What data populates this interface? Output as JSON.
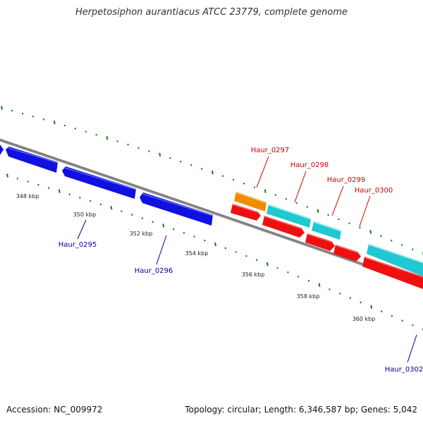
{
  "title": "Herpetosiphon aurantiacus ATCC 23779, complete genome",
  "footer": {
    "accession": "Accession: NC_009972",
    "summary": "Topology: circular; Length: 6,346,587 bp; Genes: 5,042"
  },
  "colors": {
    "backbone": "#808080",
    "ticks": "#1a7a1a",
    "forward_gene_label": "#cc0000",
    "reverse_gene_label": "#000099",
    "gene_blue": "#1010e0",
    "gene_red": "#ee1010",
    "gene_cyan": "#20c8d0",
    "gene_orange": "#f08c00"
  },
  "position_labels": [
    "348 kbp",
    "350 kbp",
    "352 kbp",
    "354 kbp",
    "356 kbp",
    "358 kbp",
    "360 kbp"
  ],
  "gene_labels": {
    "reverse": [
      "Haur_0295",
      "Haur_0296",
      "Haur_0302"
    ],
    "forward": [
      "Haur_0297",
      "Haur_0298",
      "Haur_0299",
      "Haur_0300"
    ]
  }
}
